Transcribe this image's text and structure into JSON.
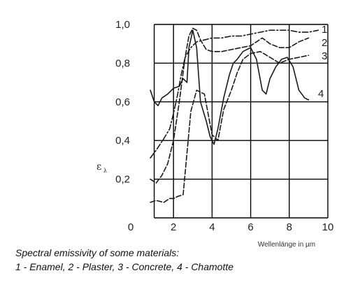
{
  "chart_data": {
    "type": "line",
    "xlabel": "Wellenlänge in µm",
    "ylabel": "ε",
    "ylabel_subscript": "λ",
    "xlim": [
      0,
      10
    ],
    "ylim": [
      0,
      1.0
    ],
    "x_ticks": [
      "0",
      "2",
      "4",
      "6",
      "8",
      "10"
    ],
    "y_ticks": [
      "0,2",
      "0,4",
      "0,6",
      "0,8",
      "1,0"
    ],
    "grid": true,
    "series": [
      {
        "name": "1",
        "line_style": "dash-dot",
        "x": [
          0.8,
          1.1,
          1.5,
          1.8,
          2.0,
          2.2,
          2.4,
          2.6,
          2.9,
          3.2,
          3.6,
          4.0,
          4.5,
          5.0,
          5.5,
          6.0,
          6.5,
          7.0,
          7.5,
          8.0,
          8.5,
          9.0,
          9.5
        ],
        "values": [
          0.31,
          0.35,
          0.41,
          0.46,
          0.54,
          0.63,
          0.74,
          0.83,
          0.88,
          0.91,
          0.92,
          0.93,
          0.93,
          0.94,
          0.94,
          0.95,
          0.96,
          0.97,
          0.97,
          0.97,
          0.96,
          0.96,
          0.97
        ]
      },
      {
        "name": "2",
        "line_style": "dashed",
        "x": [
          0.8,
          1.1,
          1.4,
          1.7,
          2.0,
          2.3,
          2.6,
          2.8,
          3.0,
          3.2,
          3.4,
          3.7,
          4.0,
          4.5,
          5.0,
          5.5,
          6.0,
          6.3,
          6.6,
          7.0,
          7.5,
          8.0,
          8.5,
          9.0
        ],
        "values": [
          0.2,
          0.18,
          0.22,
          0.28,
          0.4,
          0.6,
          0.83,
          0.94,
          0.98,
          0.97,
          0.92,
          0.87,
          0.86,
          0.86,
          0.87,
          0.88,
          0.89,
          0.91,
          0.93,
          0.9,
          0.88,
          0.88,
          0.91,
          0.93
        ]
      },
      {
        "name": "3",
        "line_style": "dashed",
        "x": [
          0.8,
          1.1,
          1.5,
          1.8,
          2.0,
          2.2,
          2.5,
          2.9,
          3.2,
          3.6,
          4.0,
          4.3,
          4.6,
          5.0,
          5.3,
          5.6,
          6.0,
          6.5,
          7.0,
          7.5,
          8.0,
          8.5,
          9.0
        ],
        "values": [
          0.08,
          0.09,
          0.08,
          0.1,
          0.1,
          0.11,
          0.12,
          0.55,
          0.66,
          0.64,
          0.43,
          0.4,
          0.56,
          0.66,
          0.75,
          0.82,
          0.85,
          0.86,
          0.83,
          0.8,
          0.82,
          0.83,
          0.84
        ]
      },
      {
        "name": "4",
        "line_style": "solid",
        "x": [
          0.8,
          1.0,
          1.2,
          1.4,
          1.7,
          2.0,
          2.3,
          2.5,
          2.7,
          2.8,
          3.0,
          3.2,
          3.4,
          3.7,
          3.9,
          4.1,
          4.3,
          4.6,
          4.9,
          5.1,
          5.3,
          5.6,
          6.0,
          6.3,
          6.6,
          6.8,
          7.0,
          7.3,
          7.6,
          7.9,
          8.2,
          8.5,
          8.8,
          9.0
        ],
        "values": [
          0.66,
          0.6,
          0.58,
          0.62,
          0.64,
          0.67,
          0.68,
          0.72,
          0.7,
          0.88,
          0.97,
          0.88,
          0.6,
          0.5,
          0.42,
          0.38,
          0.46,
          0.62,
          0.74,
          0.8,
          0.82,
          0.86,
          0.88,
          0.82,
          0.66,
          0.64,
          0.72,
          0.78,
          0.82,
          0.83,
          0.78,
          0.66,
          0.62,
          0.61
        ]
      }
    ]
  },
  "caption": {
    "line1": "Spectral emissivity of some materials:",
    "line2": "1 - Enamel, 2 - Plaster, 3 - Concrete, 4 - Chamotte"
  }
}
